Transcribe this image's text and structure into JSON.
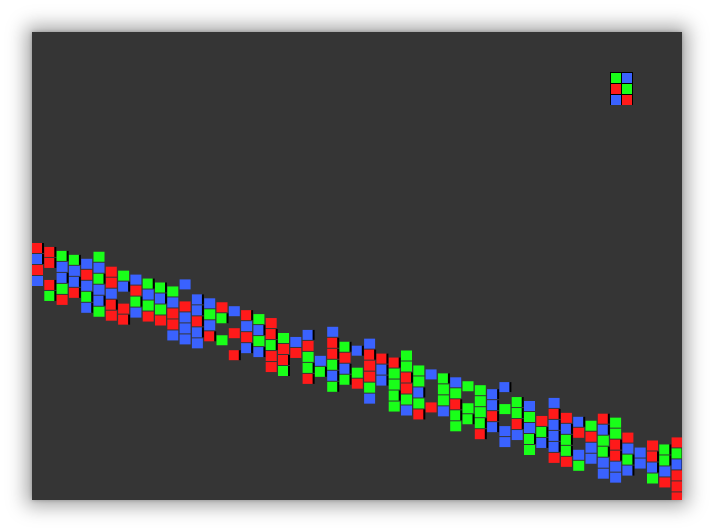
{
  "canvas": {
    "background": "#353535",
    "subpixel_colors": {
      "red": "#ff1a1a",
      "green": "#19ff19",
      "blue": "#3a62ff",
      "gap": "#000000"
    }
  }
}
